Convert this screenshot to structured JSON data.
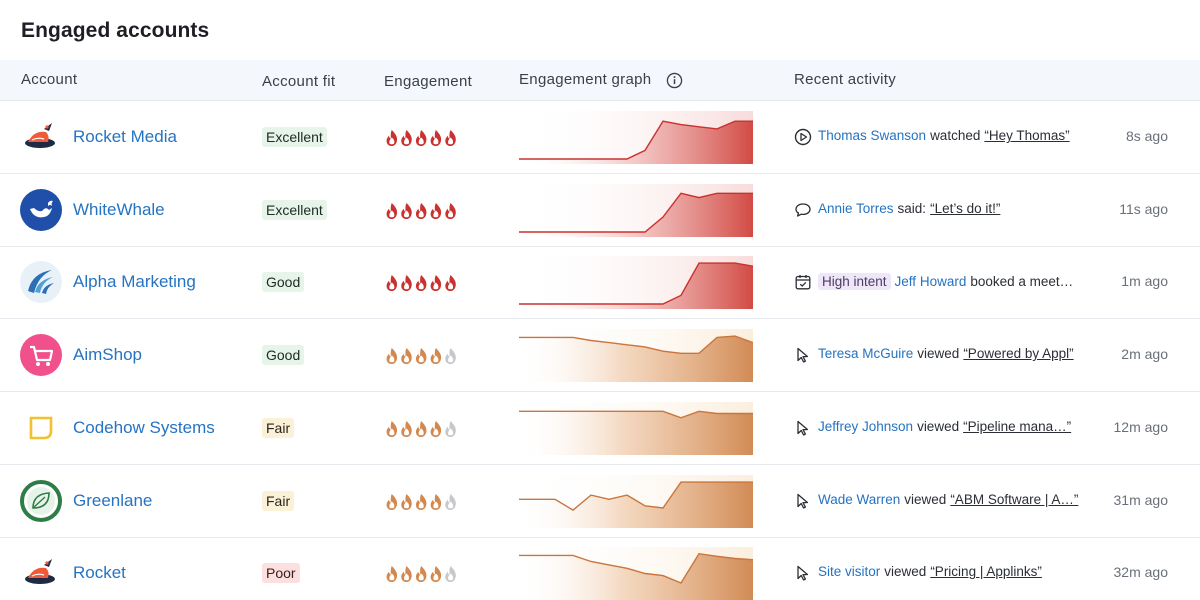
{
  "title": "Engaged accounts",
  "columns": {
    "account": "Account",
    "fit": "Account fit",
    "engagement": "Engagement",
    "graph": "Engagement graph",
    "activity": "Recent activity"
  },
  "colors": {
    "link": "#2573c2",
    "hot": "#c9322e",
    "warm": "#d3884f",
    "muted": "#c6c8cc"
  },
  "rows": [
    {
      "name": "Rocket Media",
      "logo": "rocket-logo",
      "fit": "Excellent",
      "fit_level": "excellent",
      "engagement": 5,
      "heat": "hot",
      "graph": [
        0,
        0,
        0,
        0,
        0,
        0,
        0,
        0.2,
        0.88,
        0.8,
        0.75,
        0.7,
        0.88,
        0.88
      ],
      "activity": {
        "icon": "play-icon",
        "badge": "",
        "person": "Thomas Swanson",
        "verb": "watched",
        "target": "“Hey Thomas”"
      },
      "ago": "8s ago"
    },
    {
      "name": "WhiteWhale",
      "logo": "whale-logo",
      "fit": "Excellent",
      "fit_level": "excellent",
      "engagement": 5,
      "heat": "hot",
      "graph": [
        0,
        0,
        0,
        0,
        0,
        0,
        0,
        0,
        0.35,
        0.9,
        0.8,
        0.9,
        0.9,
        0.9
      ],
      "activity": {
        "icon": "chat-icon",
        "badge": "",
        "person": "Annie Torres",
        "verb": "said:",
        "target": "“Let’s do it!”"
      },
      "ago": "11s ago"
    },
    {
      "name": "Alpha Marketing",
      "logo": "alpha-logo",
      "fit": "Good",
      "fit_level": "good",
      "engagement": 5,
      "heat": "hot",
      "graph": [
        0,
        0,
        0,
        0,
        0,
        0,
        0,
        0,
        0,
        0.2,
        0.95,
        0.95,
        0.95,
        0.88
      ],
      "activity": {
        "icon": "calendar-icon",
        "badge": "High intent",
        "person": "Jeff Howard",
        "verb": "booked a meet…",
        "target": ""
      },
      "ago": "1m ago"
    },
    {
      "name": "AimShop",
      "logo": "cart-logo",
      "fit": "Good",
      "fit_level": "good",
      "engagement": 4,
      "heat": "warm",
      "graph": [
        0.92,
        0.92,
        0.92,
        0.92,
        0.85,
        0.8,
        0.75,
        0.7,
        0.6,
        0.55,
        0.55,
        0.92,
        0.95,
        0.8
      ],
      "activity": {
        "icon": "cursor-icon",
        "badge": "",
        "person": "Teresa McGuire",
        "verb": "viewed",
        "target": "“Powered by Appl”"
      },
      "ago": "2m ago"
    },
    {
      "name": "Codehow Systems",
      "logo": "codehow-logo",
      "fit": "Fair",
      "fit_level": "fair",
      "engagement": 4,
      "heat": "warm",
      "graph": [
        0.9,
        0.9,
        0.9,
        0.9,
        0.9,
        0.9,
        0.9,
        0.9,
        0.9,
        0.75,
        0.9,
        0.85,
        0.85,
        0.85
      ],
      "activity": {
        "icon": "cursor-icon",
        "badge": "",
        "person": "Jeffrey Johnson",
        "verb": "viewed",
        "target": "“Pipeline mana…”"
      },
      "ago": "12m ago"
    },
    {
      "name": "Greenlane",
      "logo": "leaf-logo",
      "fit": "Fair",
      "fit_level": "fair",
      "engagement": 4,
      "heat": "warm",
      "graph": [
        0.55,
        0.55,
        0.55,
        0.3,
        0.65,
        0.55,
        0.65,
        0.4,
        0.35,
        0.95,
        0.95,
        0.95,
        0.95,
        0.95
      ],
      "activity": {
        "icon": "cursor-icon",
        "badge": "",
        "person": "Wade Warren",
        "verb": "viewed",
        "target": "“ABM Software | A…”"
      },
      "ago": "31m ago"
    },
    {
      "name": "Rocket",
      "logo": "rocket-logo",
      "fit": "Poor",
      "fit_level": "poor",
      "engagement": 4,
      "heat": "warm",
      "graph": [
        0.92,
        0.92,
        0.92,
        0.92,
        0.78,
        0.7,
        0.62,
        0.5,
        0.45,
        0.28,
        0.96,
        0.9,
        0.85,
        0.82
      ],
      "activity": {
        "icon": "cursor-icon",
        "badge": "",
        "person": "Site visitor",
        "verb": "viewed",
        "target": "“Pricing | Applinks”"
      },
      "ago": "32m ago"
    }
  ]
}
